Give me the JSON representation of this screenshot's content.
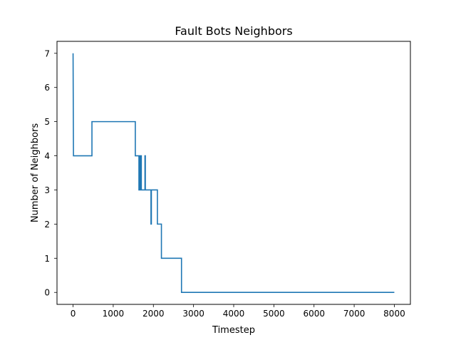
{
  "chart_data": {
    "type": "line",
    "title": "Fault Bots Neighbors",
    "xlabel": "Timestep",
    "ylabel": "Number of Neighbors",
    "xlim": [
      -400,
      8400
    ],
    "ylim": [
      -0.35,
      7.35
    ],
    "xticks": [
      0,
      1000,
      2000,
      3000,
      4000,
      5000,
      6000,
      7000,
      8000
    ],
    "yticks": [
      0,
      1,
      2,
      3,
      4,
      5,
      6,
      7
    ],
    "grid": false,
    "series": [
      {
        "name": "Neighbors",
        "color": "#1f77b4",
        "step": true,
        "points": [
          [
            0,
            7
          ],
          [
            10,
            4
          ],
          [
            470,
            4
          ],
          [
            470,
            5
          ],
          [
            1550,
            5
          ],
          [
            1550,
            4
          ],
          [
            1640,
            4
          ],
          [
            1640,
            3
          ],
          [
            1660,
            3
          ],
          [
            1660,
            4
          ],
          [
            1670,
            4
          ],
          [
            1670,
            3
          ],
          [
            1690,
            3
          ],
          [
            1690,
            4
          ],
          [
            1700,
            4
          ],
          [
            1700,
            3
          ],
          [
            1790,
            3
          ],
          [
            1790,
            4
          ],
          [
            1800,
            4
          ],
          [
            1800,
            3
          ],
          [
            1940,
            3
          ],
          [
            1940,
            2
          ],
          [
            1950,
            2
          ],
          [
            1950,
            3
          ],
          [
            2100,
            3
          ],
          [
            2100,
            2
          ],
          [
            2200,
            2
          ],
          [
            2200,
            1
          ],
          [
            2700,
            1
          ],
          [
            2700,
            0
          ],
          [
            8000,
            0
          ]
        ]
      }
    ]
  }
}
